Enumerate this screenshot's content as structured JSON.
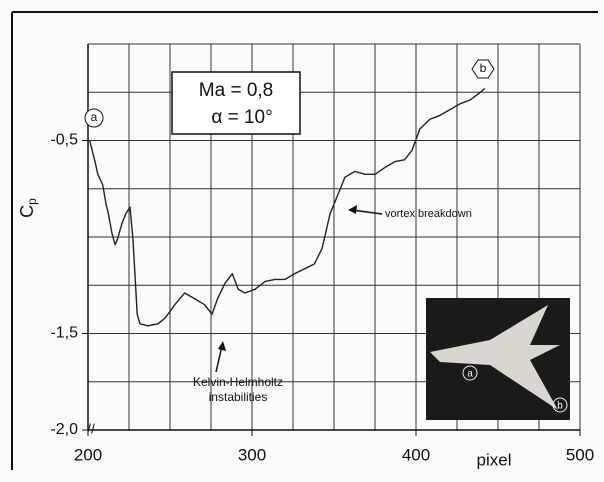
{
  "chart_data": {
    "type": "line",
    "x_label": "pixel",
    "y_label": {
      "main": "C",
      "sub": "p"
    },
    "annotations": {
      "box_line1": "Ma = 0,8",
      "box_line2": "α = 10°",
      "point_a": "a",
      "point_b": "b",
      "vortex": "vortex breakdown",
      "kh_line1": "Kelvin-Helmholtz",
      "kh_line2": "instabilities",
      "inset_a": "a",
      "inset_b": "b"
    },
    "xlim": [
      200,
      500
    ],
    "ylim": [
      -2.0,
      0
    ],
    "xticks": [
      200,
      300,
      400,
      500
    ],
    "yticks": [
      {
        "value": -0.5,
        "label": "-0,5"
      },
      {
        "value": -1.5,
        "label": "-1,5"
      },
      {
        "value": -2.0,
        "label": "-2,0"
      }
    ],
    "xgrid": [
      225,
      250,
      275,
      300,
      325,
      350,
      375,
      400,
      425,
      450,
      475,
      500
    ],
    "ygrid": [
      -1.75,
      -1.5,
      -1.25,
      -1.0,
      -0.75,
      -0.5,
      -0.25,
      0
    ],
    "grid": true,
    "series": [
      {
        "color": "#222222",
        "x": [
          201,
          204,
          206,
          209,
          211,
          212.2,
          214.6,
          216.5,
          218,
          220.7,
          223,
          225.6,
          227.4,
          230,
          231.7,
          236.6,
          242.7,
          247,
          253,
          259,
          265,
          271,
          275.6,
          279,
          283.5,
          288,
          291.5,
          295.7,
          302,
          308,
          314,
          320,
          326,
          332,
          338,
          342.7,
          347.6,
          352.4,
          356.7,
          362.8,
          369,
          375,
          381,
          387,
          393,
          397.6,
          402.4,
          408.5,
          414.6,
          420.7,
          426.8,
          433,
          437.8,
          442
        ],
        "values": [
          -0.5,
          -0.6,
          -0.675,
          -0.73,
          -0.83,
          -0.87,
          -0.98,
          -1.04,
          -1.01,
          -0.93,
          -0.88,
          -0.845,
          -1.01,
          -1.4,
          -1.45,
          -1.46,
          -1.45,
          -1.42,
          -1.35,
          -1.29,
          -1.32,
          -1.35,
          -1.4,
          -1.32,
          -1.24,
          -1.19,
          -1.27,
          -1.29,
          -1.27,
          -1.23,
          -1.22,
          -1.22,
          -1.19,
          -1.165,
          -1.14,
          -1.06,
          -0.88,
          -0.78,
          -0.69,
          -0.66,
          -0.675,
          -0.675,
          -0.64,
          -0.61,
          -0.6,
          -0.55,
          -0.44,
          -0.39,
          -0.37,
          -0.34,
          -0.31,
          -0.29,
          -0.26,
          -0.23
        ]
      }
    ]
  }
}
